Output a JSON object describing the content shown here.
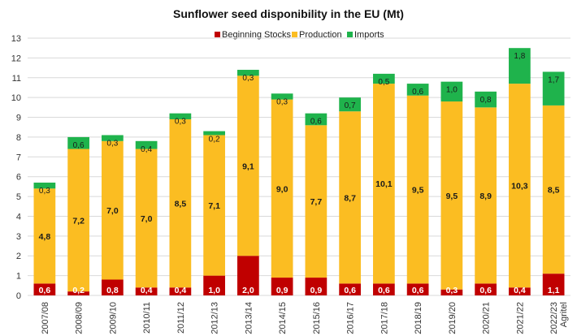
{
  "chart_data": {
    "type": "bar",
    "stacked": true,
    "title": "Sunflower seed disponibility in the EU (Mt)",
    "xlabel": "",
    "ylabel": "",
    "ylim": [
      0,
      13
    ],
    "yticks": [
      "0",
      "1",
      "2",
      "3",
      "4",
      "5",
      "6",
      "7",
      "8",
      "9",
      "10",
      "11",
      "12",
      "13"
    ],
    "grid": true,
    "legend_position": "top",
    "categories": [
      "2007/08",
      "2008/09",
      "2009/10",
      "2010/11",
      "2011/12",
      "2012/13",
      "2013/14",
      "2014/15",
      "2015/16",
      "2016/17",
      "2017/18",
      "2018/19",
      "2019/20",
      "2020/21",
      "2021/22",
      "2022/23"
    ],
    "category_note": "Agritel",
    "series": [
      {
        "name": "Beginning Stocks",
        "color": "#c00000",
        "values": [
          0.6,
          0.2,
          0.8,
          0.4,
          0.4,
          1.0,
          2.0,
          0.9,
          0.9,
          0.6,
          0.6,
          0.6,
          0.3,
          0.6,
          0.4,
          1.1
        ],
        "labels": [
          "0,6",
          "0,2",
          "0,8",
          "0,4",
          "0,4",
          "1,0",
          "2,0",
          "0,9",
          "0,9",
          "0,6",
          "0,6",
          "0,6",
          "0,3",
          "0,6",
          "0,4",
          "1,1"
        ]
      },
      {
        "name": "Production",
        "color": "#fbbd22",
        "values": [
          4.8,
          7.2,
          7.0,
          7.0,
          8.5,
          7.1,
          9.1,
          9.0,
          7.7,
          8.7,
          10.1,
          9.5,
          9.5,
          8.9,
          10.3,
          8.5
        ],
        "labels": [
          "4,8",
          "7,2",
          "7,0",
          "7,0",
          "8,5",
          "7,1",
          "9,1",
          "9,0",
          "7,7",
          "8,7",
          "10,1",
          "9,5",
          "9,5",
          "8,9",
          "10,3",
          "8,5"
        ]
      },
      {
        "name": "Imports",
        "color": "#1fb34c",
        "values": [
          0.3,
          0.6,
          0.3,
          0.4,
          0.3,
          0.2,
          0.3,
          0.3,
          0.6,
          0.7,
          0.5,
          0.6,
          1.0,
          0.8,
          1.8,
          1.7
        ],
        "labels": [
          "0,3",
          "0,6",
          "0,3",
          "0,4",
          "0,3",
          "0,2",
          "0,3",
          "0,3",
          "0,6",
          "0,7",
          "0,5",
          "0,6",
          "1,0",
          "0,8",
          "1,8",
          "1,7"
        ]
      }
    ]
  }
}
